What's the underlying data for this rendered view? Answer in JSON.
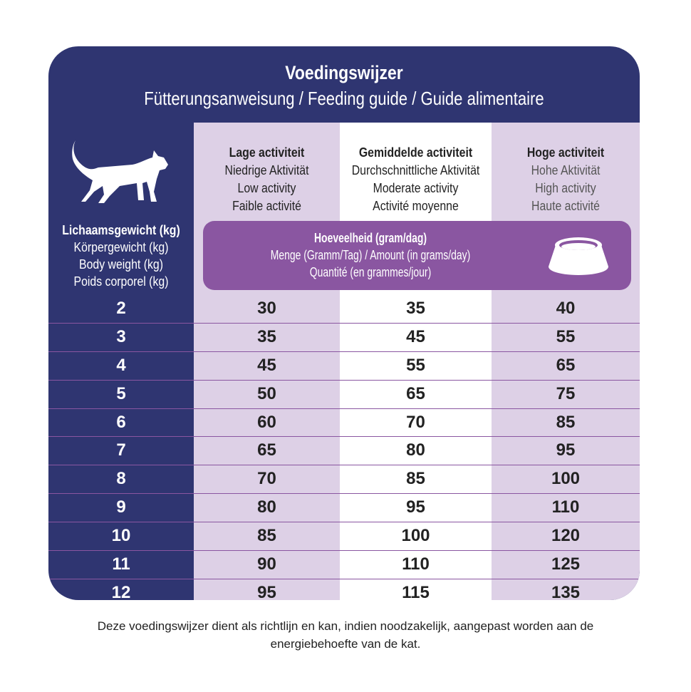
{
  "title": "Voedingswijzer",
  "subtitle": "Fütterungsanweisung / Feeding guide / Guide alimentaire",
  "columns": [
    {
      "nl": "Lage activiteit",
      "de": "Niedrige Aktivität",
      "en": "Low activity",
      "fr": "Faible activité"
    },
    {
      "nl": "Gemiddelde activiteit",
      "de": "Durchschnittliche Aktivität",
      "en": "Moderate activity",
      "fr": "Activité moyenne"
    },
    {
      "nl": "Hoge activiteit",
      "de": "Hohe Aktivität",
      "en": "High activity",
      "fr": "Haute activité"
    }
  ],
  "weight_label": {
    "nl": "Lichaamsgewicht (kg)",
    "de": "Körpergewicht (kg)",
    "en": "Body weight (kg)",
    "fr": "Poids corporel (kg)"
  },
  "amount_label": {
    "nl": "Hoeveelheid (gram/dag)",
    "de_en": "Menge (Gramm/Tag) / Amount (in grams/day)",
    "fr": "Quantité (en grammes/jour)"
  },
  "rows": [
    {
      "w": "2",
      "a": "30",
      "b": "35",
      "c": "40"
    },
    {
      "w": "3",
      "a": "35",
      "b": "45",
      "c": "55"
    },
    {
      "w": "4",
      "a": "45",
      "b": "55",
      "c": "65"
    },
    {
      "w": "5",
      "a": "50",
      "b": "65",
      "c": "75"
    },
    {
      "w": "6",
      "a": "60",
      "b": "70",
      "c": "85"
    },
    {
      "w": "7",
      "a": "65",
      "b": "80",
      "c": "95"
    },
    {
      "w": "8",
      "a": "70",
      "b": "85",
      "c": "100"
    },
    {
      "w": "9",
      "a": "80",
      "b": "95",
      "c": "110"
    },
    {
      "w": "10",
      "a": "85",
      "b": "100",
      "c": "120"
    },
    {
      "w": "11",
      "a": "90",
      "b": "110",
      "c": "125"
    },
    {
      "w": "12",
      "a": "95",
      "b": "115",
      "c": "135"
    }
  ],
  "footer": "Deze voedingswijzer dient als richtlijn en kan, indien noodzakelijk, aangepast worden aan de energiebehoefte van de kat."
}
